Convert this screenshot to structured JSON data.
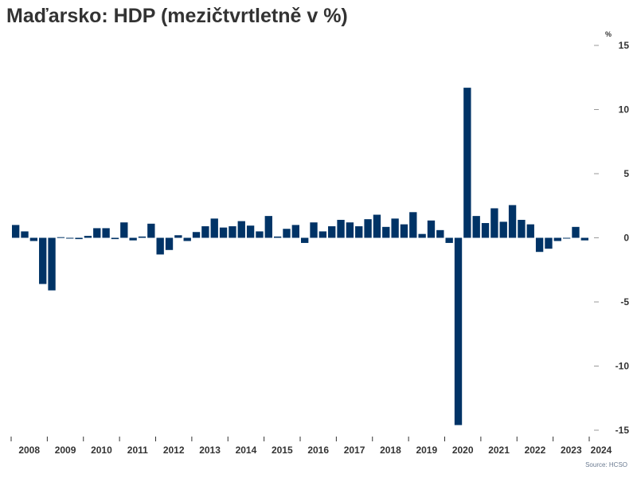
{
  "chart_data": {
    "type": "bar",
    "title": "Maďarsko: HDP (mezičtvrtletně v %)",
    "ylabel": "%",
    "source": "Source: HCSO",
    "ylim": [
      -15,
      15
    ],
    "yticks": [
      15,
      10,
      5,
      0,
      -5,
      -10,
      -15
    ],
    "xticks": [
      "2008",
      "2009",
      "2010",
      "2011",
      "2012",
      "2013",
      "2014",
      "2015",
      "2016",
      "2017",
      "2018",
      "2019",
      "2020",
      "2021",
      "2022",
      "2023",
      "2024"
    ],
    "x_start": "2008 Q1",
    "frequency": "quarterly",
    "bar_color": "#003366",
    "grid": false,
    "values": [
      1.0,
      0.5,
      -0.25,
      -3.6,
      -4.1,
      0.05,
      -0.05,
      -0.1,
      0.15,
      0.75,
      0.75,
      -0.1,
      1.2,
      -0.2,
      0.1,
      1.1,
      -1.3,
      -0.95,
      0.2,
      -0.25,
      0.45,
      0.9,
      1.5,
      0.8,
      0.9,
      1.3,
      0.95,
      0.5,
      1.7,
      0.1,
      0.7,
      1.0,
      -0.4,
      1.2,
      0.5,
      0.9,
      1.4,
      1.2,
      0.9,
      1.45,
      1.8,
      0.85,
      1.5,
      1.05,
      2.0,
      0.3,
      1.35,
      0.6,
      -0.4,
      -14.6,
      11.7,
      1.7,
      1.15,
      2.3,
      1.25,
      2.55,
      1.4,
      1.05,
      -1.1,
      -0.85,
      -0.25,
      -0.05,
      0.85,
      -0.2
    ]
  }
}
